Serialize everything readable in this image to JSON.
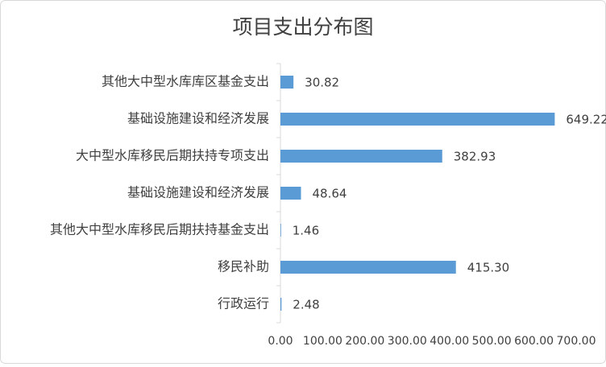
{
  "chart_data": {
    "type": "bar",
    "orientation": "horizontal",
    "title": "项目支出分布图",
    "categories": [
      "其他大中型水库库区基金支出",
      "基础设施建设和经济发展",
      "大中型水库移民后期扶持专项支出",
      "基础设施建设和经济发展",
      "其他大中型水库移民后期扶持基金支出",
      "移民补助",
      "行政运行"
    ],
    "values": [
      30.82,
      649.22,
      382.93,
      48.64,
      1.46,
      415.3,
      2.48
    ],
    "value_labels": [
      "30.82",
      "649.22",
      "382.93",
      "48.64",
      "1.46",
      "415.30",
      "2.48"
    ],
    "color": "#5b9bd5",
    "xlim": [
      0,
      700
    ],
    "xticks": [
      {
        "value": 0,
        "label": "0.00"
      },
      {
        "value": 100,
        "label": "100.00"
      },
      {
        "value": 200,
        "label": "200.00"
      },
      {
        "value": 300,
        "label": "300.00"
      },
      {
        "value": 400,
        "label": "400.00"
      },
      {
        "value": 500,
        "label": "500.00"
      },
      {
        "value": 600,
        "label": "600.00"
      },
      {
        "value": 700,
        "label": "700.00"
      }
    ],
    "grid": false
  }
}
